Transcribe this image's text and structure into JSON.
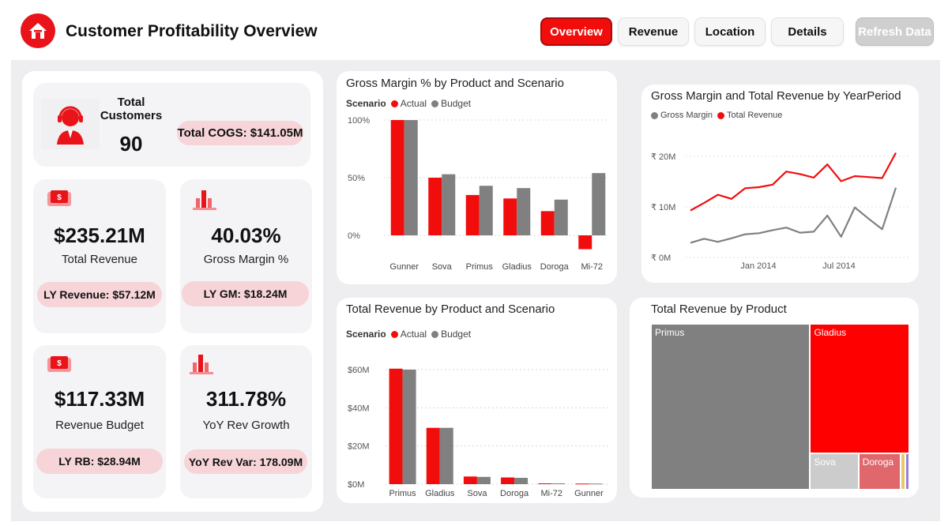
{
  "app": {
    "title": "Customer Profitability Overview"
  },
  "nav": {
    "overview": "Overview",
    "revenue": "Revenue",
    "location": "Location",
    "details": "Details",
    "refresh": "Refresh Data"
  },
  "kpis": {
    "customers": {
      "label": "Total Customers",
      "value": "90"
    },
    "cogs": "Total COGS: $141.05M",
    "revenue": {
      "value": "$235.21M",
      "label": "Total Revenue",
      "ly": "LY Revenue: $57.12M"
    },
    "margin": {
      "value": "40.03%",
      "label": "Gross Margin %",
      "ly": "LY GM: $18.24M"
    },
    "budget": {
      "value": "$117.33M",
      "label": "Revenue Budget",
      "ly": "LY RB: $28.94M"
    },
    "growth": {
      "value": "311.78%",
      "label": "YoY Rev Growth",
      "ly": "YoY Rev Var: 178.09M"
    }
  },
  "colors": {
    "accent": "#f20d0d",
    "budget": "#808080",
    "pill": "#f6d4d8"
  },
  "icons": {
    "logo": "house-icon",
    "customers": "headset-agent-icon",
    "revenue": "dollar-bill-icon",
    "margin": "bar-chart-icon"
  },
  "chart_data": [
    {
      "id": "gm_pct",
      "type": "bar",
      "title": "Gross Margin % by Product and Scenario",
      "legend_title": "Scenario",
      "categories": [
        "Gunner",
        "Sova",
        "Primus",
        "Gladius",
        "Doroga",
        "Mi-72"
      ],
      "series": [
        {
          "name": "Actual",
          "values": [
            100,
            50,
            35,
            32,
            21,
            -12
          ]
        },
        {
          "name": "Budget",
          "values": [
            100,
            53,
            43,
            41,
            31,
            54
          ]
        }
      ],
      "yticks": [
        "100%",
        "50%",
        "0%"
      ],
      "ylim": [
        -20,
        100
      ],
      "grid": true
    },
    {
      "id": "rev_product",
      "type": "bar",
      "title": "Total Revenue by Product and Scenario",
      "legend_title": "Scenario",
      "categories": [
        "Primus",
        "Gladius",
        "Sova",
        "Doroga",
        "Mi-72",
        "Gunner"
      ],
      "series": [
        {
          "name": "Actual",
          "values": [
            60.5,
            29.5,
            4.0,
            3.5,
            0.4,
            0.3
          ]
        },
        {
          "name": "Budget",
          "values": [
            60,
            29.5,
            3.8,
            3.3,
            0.4,
            0.3
          ]
        }
      ],
      "yticks": [
        "$60M",
        "$40M",
        "$20M",
        "$0M"
      ],
      "ylim": [
        0,
        60
      ],
      "grid": true
    },
    {
      "id": "gm_rev_period",
      "type": "line",
      "title": "Gross Margin and Total Revenue by YearPeriod",
      "series": [
        {
          "name": "Gross Margin",
          "values": [
            2.9,
            3.7,
            3.1,
            3.8,
            4.6,
            4.8,
            5.4,
            5.9,
            4.9,
            5.1,
            8.3,
            4.1,
            9.9,
            7.7,
            5.6,
            13.8
          ]
        },
        {
          "name": "Total Revenue",
          "values": [
            9.3,
            10.8,
            12.4,
            11.6,
            13.7,
            13.9,
            14.4,
            17.0,
            16.5,
            15.8,
            18.4,
            15.1,
            16.1,
            15.9,
            15.7,
            20.7
          ]
        }
      ],
      "yticks": [
        "₹ 20M",
        "₹ 10M",
        "₹ 0M"
      ],
      "xticks": [
        "Jan 2014",
        "Jul 2014"
      ],
      "ylim": [
        0,
        20
      ],
      "grid": true
    },
    {
      "id": "rev_treemap",
      "type": "treemap",
      "title": "Total Revenue by Product",
      "categories": [
        "Primus",
        "Gladius",
        "Sova",
        "Doroga",
        "Mi-72",
        "Gunner"
      ],
      "values": [
        60.5,
        29.5,
        4.0,
        3.5,
        0.4,
        0.3
      ]
    }
  ]
}
